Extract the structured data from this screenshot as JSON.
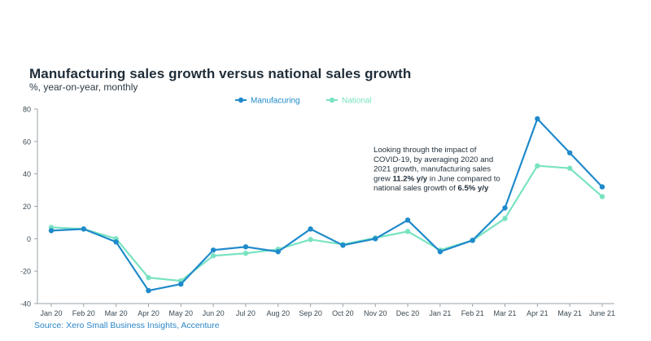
{
  "chart_data": {
    "type": "line",
    "title": "Manufacturing sales growth versus national sales growth",
    "subtitle": "%, year-on-year, monthly",
    "source": "Source: Xero Small Business Insights, Accenture",
    "categories": [
      "Jan 20",
      "Feb 20",
      "Mar 20",
      "Apr 20",
      "May 20",
      "Jun 20",
      "Jul 20",
      "Aug 20",
      "Sep 20",
      "Oct 20",
      "Nov 20",
      "Dec 20",
      "Jan 21",
      "Feb 21",
      "Mar 21",
      "Apr 21",
      "May 21",
      "June 21"
    ],
    "ylim": [
      -40,
      80
    ],
    "yticks": [
      -40,
      -20,
      0,
      20,
      40,
      60,
      80
    ],
    "grid": false,
    "legend_position": "top-center",
    "series": [
      {
        "name": "Manufacuring",
        "color": "#1f8acb",
        "values": [
          5,
          6,
          -2,
          -32,
          -28,
          -7,
          -5,
          -8,
          6,
          -4,
          0,
          11.5,
          -8,
          -1,
          19,
          74,
          53,
          32
        ]
      },
      {
        "name": "National",
        "color": "#79e3c2",
        "values": [
          7,
          6,
          0,
          -24,
          -26,
          -10.5,
          -9,
          -6.5,
          -0.5,
          -3.5,
          0.5,
          4.5,
          -7,
          -1,
          12.5,
          45,
          43.5,
          26
        ]
      }
    ],
    "annotation": {
      "lines": [
        [
          {
            "text": "Looking through the impact of",
            "bold": false
          }
        ],
        [
          {
            "text": "COVID-19, by averaging 2020 and",
            "bold": false
          }
        ],
        [
          {
            "text": "2021 growth, manufacturing sales",
            "bold": false
          }
        ],
        [
          {
            "text": "grew ",
            "bold": false
          },
          {
            "text": "11.2% y/y",
            "bold": true
          },
          {
            "text": " in June compared to",
            "bold": false
          }
        ],
        [
          {
            "text": "national sales growth of ",
            "bold": false
          },
          {
            "text": "6.5% y/y",
            "bold": true
          }
        ]
      ]
    }
  }
}
